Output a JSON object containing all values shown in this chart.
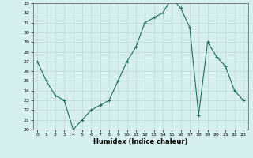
{
  "x": [
    0,
    1,
    2,
    3,
    4,
    5,
    6,
    7,
    8,
    9,
    10,
    11,
    12,
    13,
    14,
    15,
    16,
    17,
    18,
    19,
    20,
    21,
    22,
    23
  ],
  "y": [
    27.0,
    25.0,
    23.5,
    23.0,
    20.0,
    21.0,
    22.0,
    22.5,
    23.0,
    25.0,
    27.0,
    28.5,
    31.0,
    31.5,
    32.0,
    33.5,
    32.5,
    30.5,
    21.5,
    29.0,
    27.5,
    26.5,
    24.0,
    23.0
  ],
  "ylim": [
    20,
    33
  ],
  "xlim": [
    -0.5,
    23.5
  ],
  "yticks": [
    20,
    21,
    22,
    23,
    24,
    25,
    26,
    27,
    28,
    29,
    30,
    31,
    32,
    33
  ],
  "xticks": [
    0,
    1,
    2,
    3,
    4,
    5,
    6,
    7,
    8,
    9,
    10,
    11,
    12,
    13,
    14,
    15,
    16,
    17,
    18,
    19,
    20,
    21,
    22,
    23
  ],
  "xlabel": "Humidex (Indice chaleur)",
  "line_color": "#1a6b5a",
  "bg_color": "#d6f0f0",
  "grid_color": "#b8d8d8",
  "marker": "+"
}
